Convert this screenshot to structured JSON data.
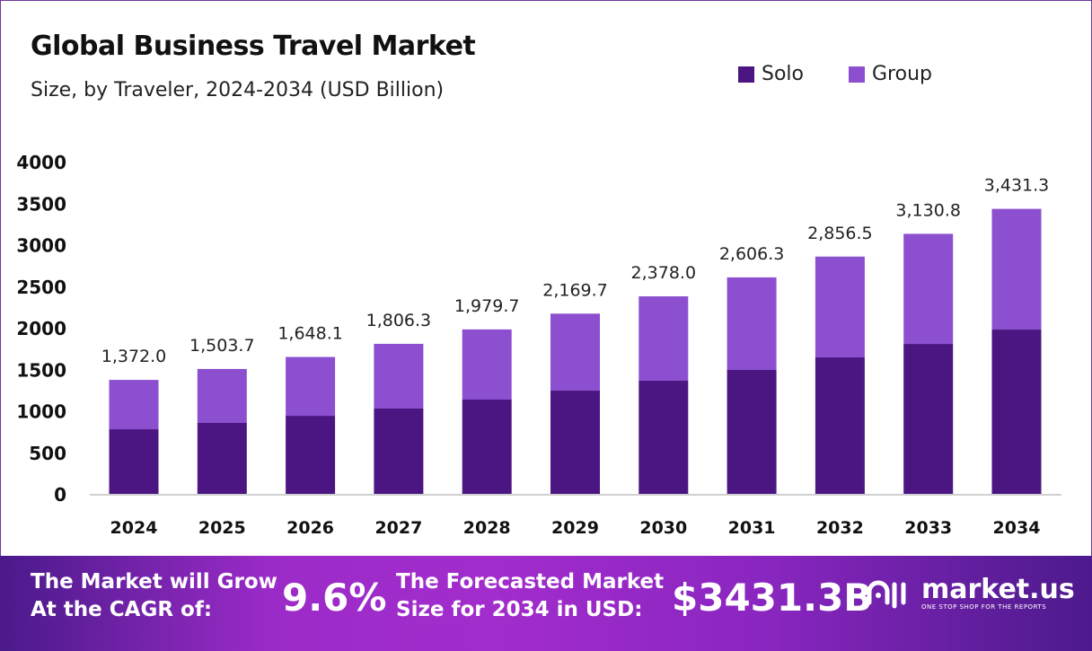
{
  "chart_data": {
    "type": "bar",
    "stacked": true,
    "title": "Global Business Travel Market",
    "subtitle": "Size, by Traveler, 2024-2034 (USD Billion)",
    "categories": [
      "2024",
      "2025",
      "2026",
      "2027",
      "2028",
      "2029",
      "2030",
      "2031",
      "2032",
      "2033",
      "2034"
    ],
    "series": [
      {
        "name": "Solo",
        "color": "#4b1681",
        "values": [
          778,
          854,
          940,
          1027,
          1135,
          1243,
          1362,
          1492,
          1643,
          1805,
          1978
        ]
      },
      {
        "name": "Group",
        "color": "#8b4fcf",
        "values": [
          594,
          649.7,
          708.1,
          779.3,
          844.7,
          926.7,
          1016,
          1114.3,
          1213.5,
          1325.8,
          1453.3
        ]
      }
    ],
    "totals": [
      1372.0,
      1503.7,
      1648.1,
      1806.3,
      1979.7,
      2169.7,
      2378.0,
      2606.3,
      2856.5,
      3130.8,
      3431.3
    ],
    "total_labels": [
      "1,372.0",
      "1,503.7",
      "1,648.1",
      "1,806.3",
      "1,979.7",
      "2,169.7",
      "2,378.0",
      "2,606.3",
      "2,856.5",
      "3,130.8",
      "3,431.3"
    ],
    "ylim": [
      0,
      4000
    ],
    "yticks": [
      0,
      500,
      1000,
      1500,
      2000,
      2500,
      3000,
      3500,
      4000
    ],
    "grid": false,
    "legend_position": "top-right"
  },
  "banner": {
    "cagr_text_1": "The Market will Grow",
    "cagr_text_2": "At the CAGR of:",
    "cagr_value": "9.6%",
    "forecast_text_1": "The Forecasted Market",
    "forecast_text_2": "Size for 2034 in USD:",
    "forecast_value": "$3431.3B",
    "logo_name": "market.us",
    "logo_tagline": "ONE STOP SHOP FOR THE REPORTS"
  }
}
